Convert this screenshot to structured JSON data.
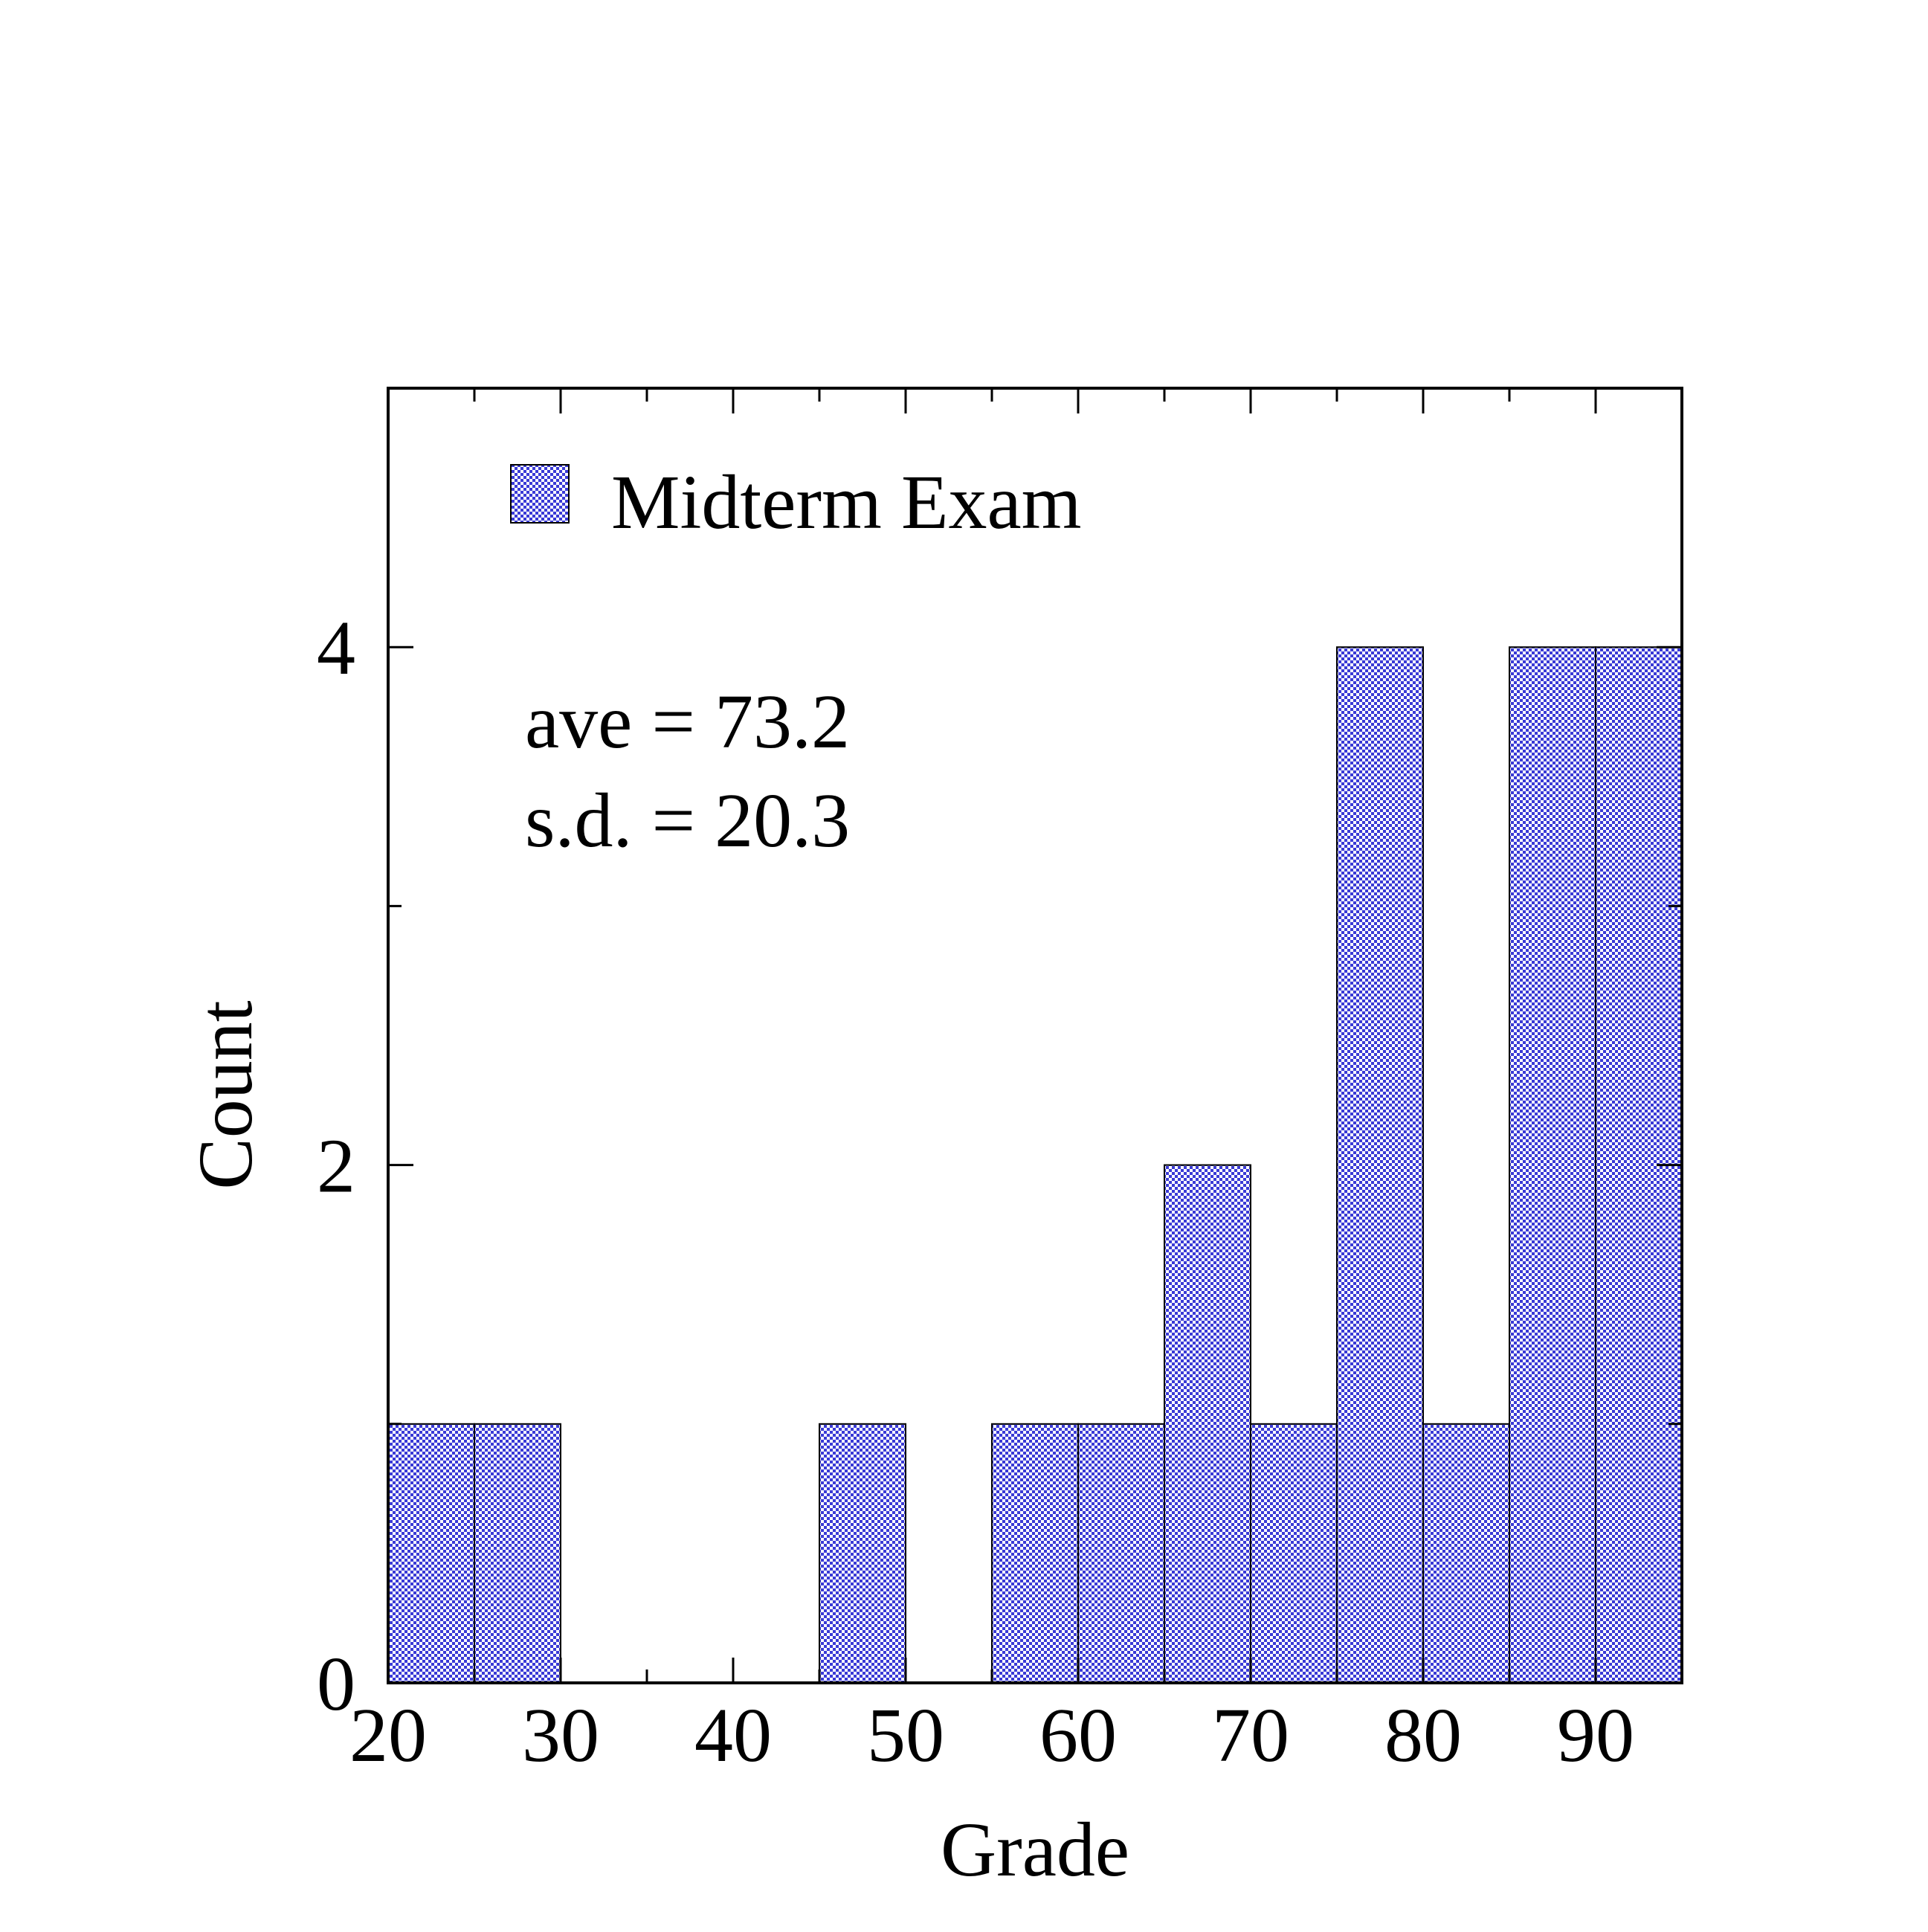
{
  "chart_data": {
    "type": "bar",
    "title": "",
    "xlabel": "Grade",
    "ylabel": "Count",
    "xlim": [
      20,
      95
    ],
    "ylim": [
      0,
      5
    ],
    "bin_width": 5,
    "x_ticks": [
      20,
      30,
      40,
      50,
      60,
      70,
      80,
      90
    ],
    "y_ticks": [
      0,
      2,
      4
    ],
    "series": [
      {
        "name": "Midterm Exam",
        "bins": [
          20,
          25,
          30,
          35,
          40,
          45,
          50,
          55,
          60,
          65,
          70,
          75,
          80,
          85,
          90
        ],
        "values": [
          1,
          1,
          0,
          0,
          0,
          1,
          0,
          1,
          1,
          2,
          1,
          4,
          1,
          4,
          4
        ]
      }
    ],
    "annotations": [
      "ave = 73.2",
      "s.d. = 20.3"
    ],
    "legend_position": "top-left",
    "grid": false,
    "colors": {
      "bar_fill": "#3a3ad6",
      "bar_pattern_light": "#ffffff",
      "edge": "#000000"
    }
  }
}
